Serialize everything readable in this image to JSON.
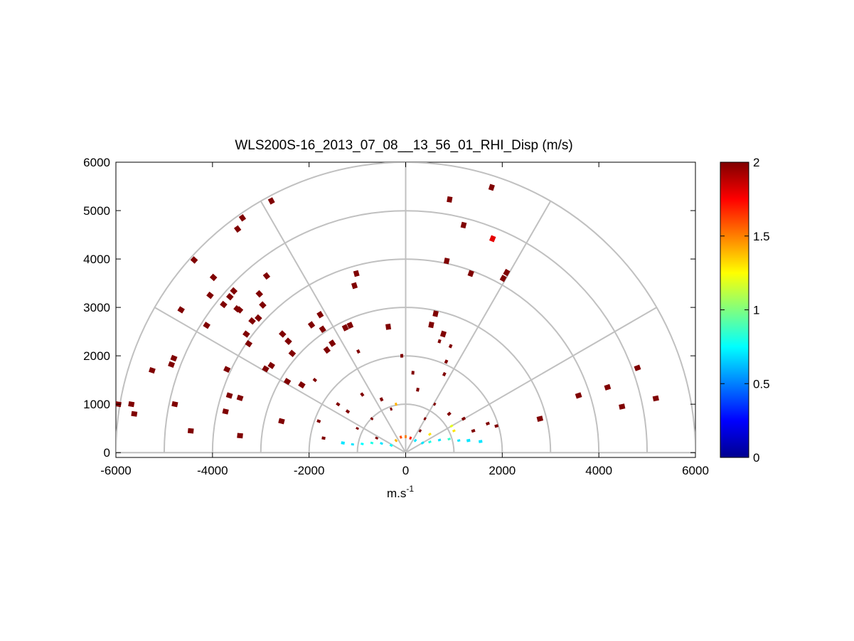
{
  "chart_data": {
    "type": "scatter",
    "subtype": "polar-rhi-sector",
    "title": "WLS200S-16_2013_07_08__13_56_01_RHI_Disp (m/s)",
    "xlabel": "m.s",
    "xlabel_superscript": "-1",
    "ylabel": "",
    "xlim": [
      -6000,
      6000
    ],
    "ylim": [
      -100,
      6000
    ],
    "x_ticks": [
      "-6000",
      "-4000",
      "-2000",
      "0",
      "2000",
      "4000",
      "6000"
    ],
    "y_ticks": [
      "0",
      "1000",
      "2000",
      "3000",
      "4000",
      "5000",
      "6000"
    ],
    "x_tick_values": [
      -6000,
      -4000,
      -2000,
      0,
      2000,
      4000,
      6000
    ],
    "y_tick_values": [
      0,
      1000,
      2000,
      3000,
      4000,
      5000,
      6000
    ],
    "polar_grid": {
      "range_rings": [
        1000,
        2000,
        3000,
        4000,
        5000,
        6000
      ],
      "spokes_deg": [
        0,
        30,
        60,
        90,
        120,
        150,
        180
      ],
      "color": "#c0c0c0"
    },
    "colorbar": {
      "min": 0,
      "max": 2,
      "ticks": [
        "0",
        "0.5",
        "1",
        "1.5",
        "2"
      ],
      "tick_values": [
        0,
        0.5,
        1,
        1.5,
        2
      ],
      "colormap": "jet"
    },
    "points": [
      {
        "x": -5680,
        "y": 1000,
        "v": 2
      },
      {
        "x": -5620,
        "y": 800,
        "v": 2
      },
      {
        "x": -5250,
        "y": 1700,
        "v": 2
      },
      {
        "x": -4850,
        "y": 1820,
        "v": 2
      },
      {
        "x": -4800,
        "y": 1950,
        "v": 2
      },
      {
        "x": -4780,
        "y": 1000,
        "v": 2
      },
      {
        "x": -4650,
        "y": 2950,
        "v": 2
      },
      {
        "x": -4450,
        "y": 450,
        "v": 2
      },
      {
        "x": -4380,
        "y": 3980,
        "v": 2
      },
      {
        "x": -4120,
        "y": 2630,
        "v": 2
      },
      {
        "x": -4050,
        "y": 3250,
        "v": 2
      },
      {
        "x": -3980,
        "y": 3620,
        "v": 2
      },
      {
        "x": -3770,
        "y": 3060,
        "v": 2
      },
      {
        "x": -3640,
        "y": 3220,
        "v": 2
      },
      {
        "x": -3560,
        "y": 3340,
        "v": 2
      },
      {
        "x": -3480,
        "y": 4620,
        "v": 2
      },
      {
        "x": -3380,
        "y": 4850,
        "v": 2
      },
      {
        "x": -3490,
        "y": 2970,
        "v": 2
      },
      {
        "x": -3440,
        "y": 2950,
        "v": 2
      },
      {
        "x": -3300,
        "y": 2450,
        "v": 2
      },
      {
        "x": -3250,
        "y": 2250,
        "v": 2
      },
      {
        "x": -3180,
        "y": 2720,
        "v": 2
      },
      {
        "x": -3030,
        "y": 3280,
        "v": 2
      },
      {
        "x": -2960,
        "y": 3050,
        "v": 2
      },
      {
        "x": -2880,
        "y": 3650,
        "v": 2
      },
      {
        "x": -2780,
        "y": 5200,
        "v": 2
      },
      {
        "x": -3700,
        "y": 1720,
        "v": 2
      },
      {
        "x": -3730,
        "y": 850,
        "v": 2
      },
      {
        "x": -3650,
        "y": 1180,
        "v": 2
      },
      {
        "x": -3430,
        "y": 1130,
        "v": 2
      },
      {
        "x": -3430,
        "y": 350,
        "v": 2
      },
      {
        "x": -3050,
        "y": 2780,
        "v": 2
      },
      {
        "x": -2900,
        "y": 1730,
        "v": 2
      },
      {
        "x": -2780,
        "y": 1800,
        "v": 2
      },
      {
        "x": -2550,
        "y": 2450,
        "v": 2
      },
      {
        "x": -2430,
        "y": 2300,
        "v": 2
      },
      {
        "x": -2350,
        "y": 2050,
        "v": 2
      },
      {
        "x": -2450,
        "y": 1470,
        "v": 2
      },
      {
        "x": -2570,
        "y": 650,
        "v": 2
      },
      {
        "x": -2150,
        "y": 1400,
        "v": 2
      },
      {
        "x": -1950,
        "y": 2640,
        "v": 2
      },
      {
        "x": -1880,
        "y": 1500,
        "v": 2
      },
      {
        "x": -1770,
        "y": 2850,
        "v": 2
      },
      {
        "x": -1720,
        "y": 2550,
        "v": 2
      },
      {
        "x": -1630,
        "y": 2120,
        "v": 2
      },
      {
        "x": -1520,
        "y": 2260,
        "v": 2
      },
      {
        "x": -1250,
        "y": 2580,
        "v": 2
      },
      {
        "x": -1150,
        "y": 2630,
        "v": 2
      },
      {
        "x": -1060,
        "y": 3450,
        "v": 2
      },
      {
        "x": -1020,
        "y": 3700,
        "v": 2
      },
      {
        "x": -980,
        "y": 2090,
        "v": 2
      },
      {
        "x": -360,
        "y": 2600,
        "v": 2
      },
      {
        "x": -80,
        "y": 2000,
        "v": 2
      },
      {
        "x": 530,
        "y": 2640,
        "v": 2
      },
      {
        "x": 620,
        "y": 2870,
        "v": 2
      },
      {
        "x": 700,
        "y": 2300,
        "v": 2
      },
      {
        "x": 780,
        "y": 2450,
        "v": 2
      },
      {
        "x": 930,
        "y": 2200,
        "v": 2
      },
      {
        "x": 840,
        "y": 1880,
        "v": 2
      },
      {
        "x": 800,
        "y": 1620,
        "v": 2
      },
      {
        "x": 850,
        "y": 3960,
        "v": 2
      },
      {
        "x": 910,
        "y": 5230,
        "v": 2
      },
      {
        "x": 1200,
        "y": 4700,
        "v": 2
      },
      {
        "x": 1350,
        "y": 3700,
        "v": 2
      },
      {
        "x": 1780,
        "y": 5480,
        "v": 2
      },
      {
        "x": 1800,
        "y": 4420,
        "v": 1.8
      },
      {
        "x": 2090,
        "y": 3720,
        "v": 2
      },
      {
        "x": 2020,
        "y": 3600,
        "v": 2
      },
      {
        "x": 2780,
        "y": 700,
        "v": 2
      },
      {
        "x": 3580,
        "y": 1180,
        "v": 2
      },
      {
        "x": 4180,
        "y": 1350,
        "v": 2
      },
      {
        "x": 4480,
        "y": 950,
        "v": 2
      },
      {
        "x": 4800,
        "y": 1750,
        "v": 2
      },
      {
        "x": 5180,
        "y": 1120,
        "v": 2
      },
      {
        "x": -5950,
        "y": 1000,
        "v": 2
      },
      {
        "x": 1700,
        "y": 600,
        "v": 2
      },
      {
        "x": 1880,
        "y": 550,
        "v": 2
      },
      {
        "x": -1400,
        "y": 1000,
        "v": 2
      },
      {
        "x": -1200,
        "y": 850,
        "v": 2
      },
      {
        "x": -900,
        "y": 1200,
        "v": 2
      },
      {
        "x": -700,
        "y": 700,
        "v": 2
      },
      {
        "x": -500,
        "y": 1100,
        "v": 2
      },
      {
        "x": -300,
        "y": 900,
        "v": 2
      },
      {
        "x": 250,
        "y": 1300,
        "v": 2
      },
      {
        "x": 400,
        "y": 700,
        "v": 2
      },
      {
        "x": 600,
        "y": 1000,
        "v": 2
      },
      {
        "x": 900,
        "y": 800,
        "v": 2
      },
      {
        "x": 1200,
        "y": 700,
        "v": 2
      },
      {
        "x": -1000,
        "y": 500,
        "v": 2
      },
      {
        "x": -600,
        "y": 300,
        "v": 2
      },
      {
        "x": 300,
        "y": 450,
        "v": 2
      },
      {
        "x": 1400,
        "y": 450,
        "v": 2
      },
      {
        "x": -1700,
        "y": 300,
        "v": 2
      },
      {
        "x": -1800,
        "y": 650,
        "v": 2
      },
      {
        "x": 150,
        "y": 1650,
        "v": 2
      },
      {
        "x": -1300,
        "y": 200,
        "v": 0.7
      },
      {
        "x": -1100,
        "y": 170,
        "v": 0.7
      },
      {
        "x": -900,
        "y": 180,
        "v": 0.75
      },
      {
        "x": -700,
        "y": 200,
        "v": 0.8
      },
      {
        "x": -500,
        "y": 190,
        "v": 0.7
      },
      {
        "x": -300,
        "y": 150,
        "v": 0.75
      },
      {
        "x": -200,
        "y": 250,
        "v": 1.4
      },
      {
        "x": -100,
        "y": 320,
        "v": 1.6
      },
      {
        "x": 0,
        "y": 330,
        "v": 1.5
      },
      {
        "x": 100,
        "y": 300,
        "v": 1.7
      },
      {
        "x": 200,
        "y": 250,
        "v": 0.7
      },
      {
        "x": 350,
        "y": 200,
        "v": 0.7
      },
      {
        "x": 500,
        "y": 220,
        "v": 0.8
      },
      {
        "x": 700,
        "y": 260,
        "v": 0.7
      },
      {
        "x": 900,
        "y": 280,
        "v": 0.85
      },
      {
        "x": 1100,
        "y": 250,
        "v": 0.7
      },
      {
        "x": 1300,
        "y": 250,
        "v": 0.7
      },
      {
        "x": 1550,
        "y": 230,
        "v": 0.7
      },
      {
        "x": 1000,
        "y": 450,
        "v": 1.3
      },
      {
        "x": 950,
        "y": 550,
        "v": 1.2
      },
      {
        "x": 500,
        "y": 380,
        "v": 1.3
      },
      {
        "x": -200,
        "y": 1000,
        "v": 1.4
      }
    ]
  }
}
